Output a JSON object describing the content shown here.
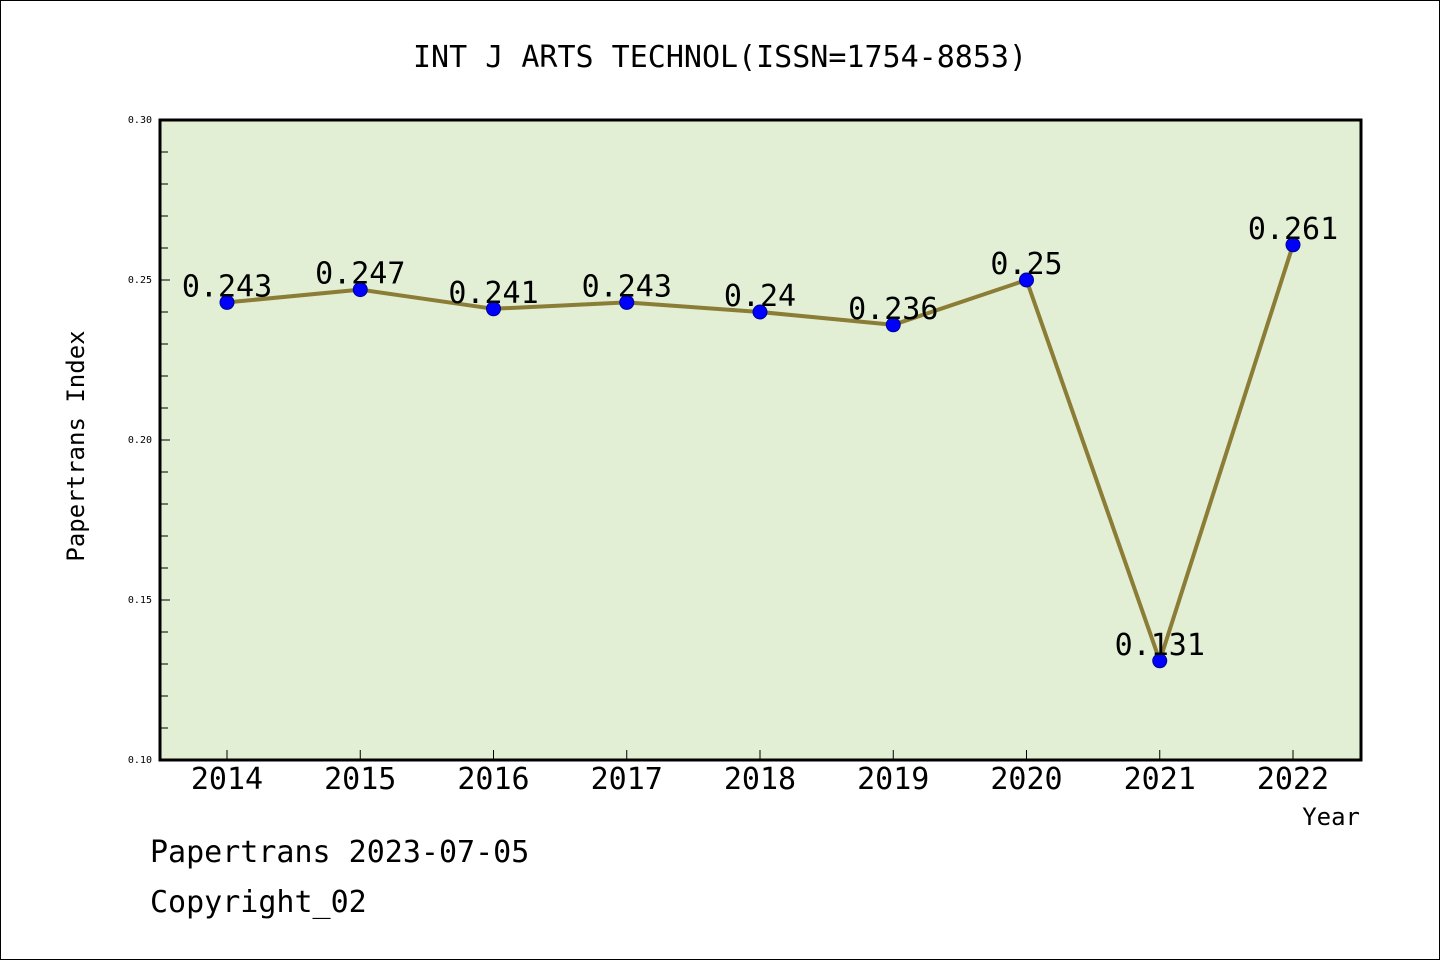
{
  "chart_data": {
    "type": "line",
    "title": "INT J ARTS TECHNOL(ISSN=1754-8853)",
    "xlabel": "Year",
    "ylabel": "Papertrans Index",
    "categories": [
      "2014",
      "2015",
      "2016",
      "2017",
      "2018",
      "2019",
      "2020",
      "2021",
      "2022"
    ],
    "values": [
      0.243,
      0.247,
      0.241,
      0.243,
      0.24,
      0.236,
      0.25,
      0.131,
      0.261
    ],
    "data_labels": [
      "0.243",
      "0.247",
      "0.241",
      "0.243",
      "0.24",
      "0.236",
      "0.25",
      "0.131",
      "0.261"
    ],
    "ylim": [
      0.1,
      0.3
    ],
    "yticks": [
      "0.10",
      "0.15",
      "0.20",
      "0.25",
      "0.30"
    ],
    "grid": false,
    "colors": {
      "plot_background": "#e2efd5",
      "line": "#8b7d35",
      "marker": "#0000ff"
    }
  },
  "footer": {
    "line1": "Papertrans 2023-07-05",
    "line2": "Copyright_02"
  }
}
